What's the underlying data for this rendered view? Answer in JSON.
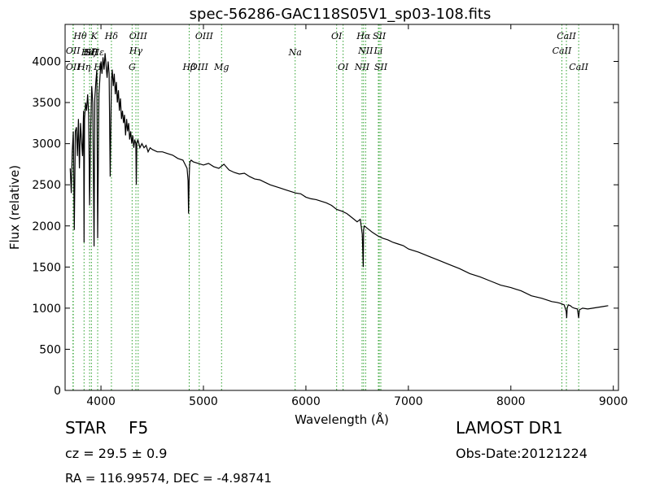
{
  "chart_data": {
    "type": "line",
    "title": "spec-56286-GAC118S05V1_sp03-108.fits",
    "xlabel": "Wavelength (Å)",
    "ylabel": "Flux (relative)",
    "xlim": [
      3650,
      9050
    ],
    "ylim": [
      0,
      4450
    ],
    "xticks": [
      4000,
      5000,
      6000,
      7000,
      8000,
      9000
    ],
    "yticks": [
      0,
      500,
      1000,
      1500,
      2000,
      2500,
      3000,
      3500,
      4000
    ],
    "grid": false,
    "line_color": "#000000",
    "marker_color": "#2ca02c",
    "series": [
      {
        "x": [
          3700,
          3710,
          3720,
          3730,
          3740,
          3750,
          3760,
          3770,
          3780,
          3790,
          3800,
          3810,
          3820,
          3830,
          3835,
          3840,
          3850,
          3860,
          3870,
          3880,
          3889,
          3900,
          3910,
          3920,
          3933,
          3940,
          3950,
          3960,
          3968,
          3980,
          3990,
          4000,
          4010,
          4020,
          4030,
          4040,
          4050,
          4060,
          4070,
          4080,
          4090,
          4102,
          4110,
          4120,
          4130,
          4140,
          4150,
          4160,
          4170,
          4180,
          4190,
          4200,
          4210,
          4220,
          4230,
          4240,
          4250,
          4260,
          4270,
          4280,
          4290,
          4300,
          4310,
          4320,
          4330,
          4340,
          4345,
          4350,
          4360,
          4380,
          4400,
          4420,
          4440,
          4460,
          4480,
          4500,
          4550,
          4600,
          4650,
          4700,
          4750,
          4800,
          4840,
          4850,
          4855,
          4861,
          4866,
          4870,
          4880,
          4900,
          4950,
          5000,
          5050,
          5100,
          5150,
          5200,
          5250,
          5300,
          5350,
          5400,
          5450,
          5500,
          5550,
          5600,
          5650,
          5700,
          5750,
          5800,
          5850,
          5900,
          5950,
          6000,
          6050,
          6100,
          6150,
          6200,
          6250,
          6300,
          6350,
          6400,
          6450,
          6500,
          6530,
          6550,
          6560,
          6563,
          6570,
          6590,
          6620,
          6650,
          6700,
          6750,
          6800,
          6850,
          6900,
          6950,
          7000,
          7100,
          7200,
          7300,
          7400,
          7500,
          7600,
          7700,
          7800,
          7900,
          8000,
          8100,
          8200,
          8300,
          8400,
          8450,
          8480,
          8500,
          8520,
          8540,
          8545,
          8550,
          8560,
          8580,
          8600,
          8620,
          8650,
          8662,
          8670,
          8700,
          8750,
          8800,
          8850,
          8900,
          8950
        ],
        "y": [
          2700,
          2400,
          2900,
          3150,
          1950,
          3150,
          3200,
          2850,
          3300,
          2700,
          3250,
          3050,
          2850,
          3400,
          1800,
          3300,
          3500,
          3400,
          3600,
          3350,
          2250,
          3200,
          3700,
          3500,
          1750,
          3550,
          3750,
          3900,
          1850,
          3600,
          3800,
          4000,
          3850,
          4050,
          3900,
          4100,
          3950,
          3800,
          4000,
          3850,
          2600,
          3750,
          3900,
          3700,
          3850,
          3600,
          3750,
          3500,
          3650,
          3400,
          3550,
          3300,
          3400,
          3250,
          3350,
          3100,
          3300,
          3150,
          3250,
          3050,
          3150,
          3000,
          3100,
          2950,
          3050,
          3000,
          2500,
          3000,
          3050,
          2950,
          3000,
          2950,
          2980,
          2900,
          2950,
          2930,
          2900,
          2900,
          2880,
          2860,
          2820,
          2800,
          2700,
          2550,
          2150,
          2600,
          2750,
          2780,
          2800,
          2780,
          2760,
          2740,
          2760,
          2720,
          2700,
          2750,
          2680,
          2650,
          2630,
          2640,
          2600,
          2570,
          2560,
          2530,
          2500,
          2480,
          2460,
          2440,
          2420,
          2400,
          2390,
          2350,
          2330,
          2320,
          2300,
          2280,
          2250,
          2200,
          2180,
          2150,
          2100,
          2050,
          2080,
          1900,
          1500,
          1950,
          2000,
          1980,
          1950,
          1920,
          1880,
          1850,
          1830,
          1800,
          1780,
          1760,
          1720,
          1680,
          1630,
          1580,
          1530,
          1480,
          1420,
          1380,
          1330,
          1280,
          1250,
          1210,
          1150,
          1120,
          1080,
          1070,
          1060,
          1050,
          1040,
          960,
          880,
          1000,
          1040,
          1030,
          1010,
          1000,
          990,
          880,
          980,
          1000,
          990,
          1000,
          1010,
          1020,
          1030
        ]
      }
    ],
    "lines_lower": [
      {
        "x": 3727,
        "label": "OII"
      },
      {
        "x": 3730,
        "label": "OII"
      },
      {
        "x": 3835,
        "label": "Hη"
      },
      {
        "x": 3889,
        "label": "HeI"
      },
      {
        "x": 3907,
        "label": "SII"
      },
      {
        "x": 3968,
        "label": "H"
      },
      {
        "x": 4102,
        "label": "Hδ"
      },
      {
        "x": 4304,
        "label": "G"
      },
      {
        "x": 4341,
        "label": "Hγ"
      },
      {
        "x": 4363,
        "label": "OIII"
      },
      {
        "x": 4861,
        "label": "Hβ"
      },
      {
        "x": 4959,
        "label": "OIII"
      },
      {
        "x": 5177,
        "label": "Mg"
      },
      {
        "x": 5895,
        "label": "Na"
      },
      {
        "x": 6300,
        "label": "OI"
      },
      {
        "x": 6363,
        "label": "OI"
      },
      {
        "x": 6548,
        "label": "NII"
      },
      {
        "x": 6563,
        "label": "Hα"
      },
      {
        "x": 6583,
        "label": "NII"
      },
      {
        "x": 6707,
        "label": "Li"
      },
      {
        "x": 6716,
        "label": "SII"
      },
      {
        "x": 6731,
        "label": "SII"
      },
      {
        "x": 8498,
        "label": "CaII"
      },
      {
        "x": 8542,
        "label": "CaII"
      },
      {
        "x": 8662,
        "label": "CaII"
      }
    ],
    "line_labels": [
      {
        "text": "Hθ",
        "x": 3797,
        "row": 0
      },
      {
        "text": "K",
        "x": 3934,
        "row": 0
      },
      {
        "text": "Hδ",
        "x": 4102,
        "row": 0
      },
      {
        "text": "OIII",
        "x": 4363,
        "row": 0
      },
      {
        "text": "OIII",
        "x": 5007,
        "row": 0
      },
      {
        "text": "OI",
        "x": 6300,
        "row": 0
      },
      {
        "text": "Hα",
        "x": 6563,
        "row": 0
      },
      {
        "text": "SII",
        "x": 6716,
        "row": 0
      },
      {
        "text": "CaII",
        "x": 8542,
        "row": 0
      },
      {
        "text": "OII",
        "x": 3727,
        "row": 1
      },
      {
        "text": "Hγ",
        "x": 4341,
        "row": 1
      },
      {
        "text": "NII",
        "x": 6583,
        "row": 1
      },
      {
        "text": "Li",
        "x": 6707,
        "row": 1
      },
      {
        "text": "CaII",
        "x": 8498,
        "row": 1
      },
      {
        "text": "Hζ",
        "x": 3889,
        "row": 2
      },
      {
        "text": "Hε",
        "x": 3970,
        "row": 2
      },
      {
        "text": "HeI",
        "x": 3889,
        "row": 2
      },
      {
        "text": "SII",
        "x": 3907,
        "row": 2
      },
      {
        "text": "Na",
        "x": 5895,
        "row": 2
      },
      {
        "text": "OII",
        "x": 3727,
        "row": 3
      },
      {
        "text": "Hη",
        "x": 3835,
        "row": 3
      },
      {
        "text": "H",
        "x": 3968,
        "row": 3
      },
      {
        "text": "G",
        "x": 4304,
        "row": 3
      },
      {
        "text": "Hβ",
        "x": 4861,
        "row": 3
      },
      {
        "text": "OIII",
        "x": 4959,
        "row": 3
      },
      {
        "text": "Mg",
        "x": 5177,
        "row": 3
      },
      {
        "text": "OI",
        "x": 6363,
        "row": 3
      },
      {
        "text": "NII",
        "x": 6548,
        "row": 3
      },
      {
        "text": "SII",
        "x": 6731,
        "row": 3
      },
      {
        "text": "CaII",
        "x": 8662,
        "row": 3
      }
    ]
  },
  "info": {
    "object_class": "STAR",
    "subclass": "F5",
    "redshift": "cz = 29.5 ± 0.9",
    "survey": "LAMOST DR1",
    "obs_date": "Obs-Date:20121224",
    "coords": "RA = 116.99574, DEC = -4.98741"
  }
}
